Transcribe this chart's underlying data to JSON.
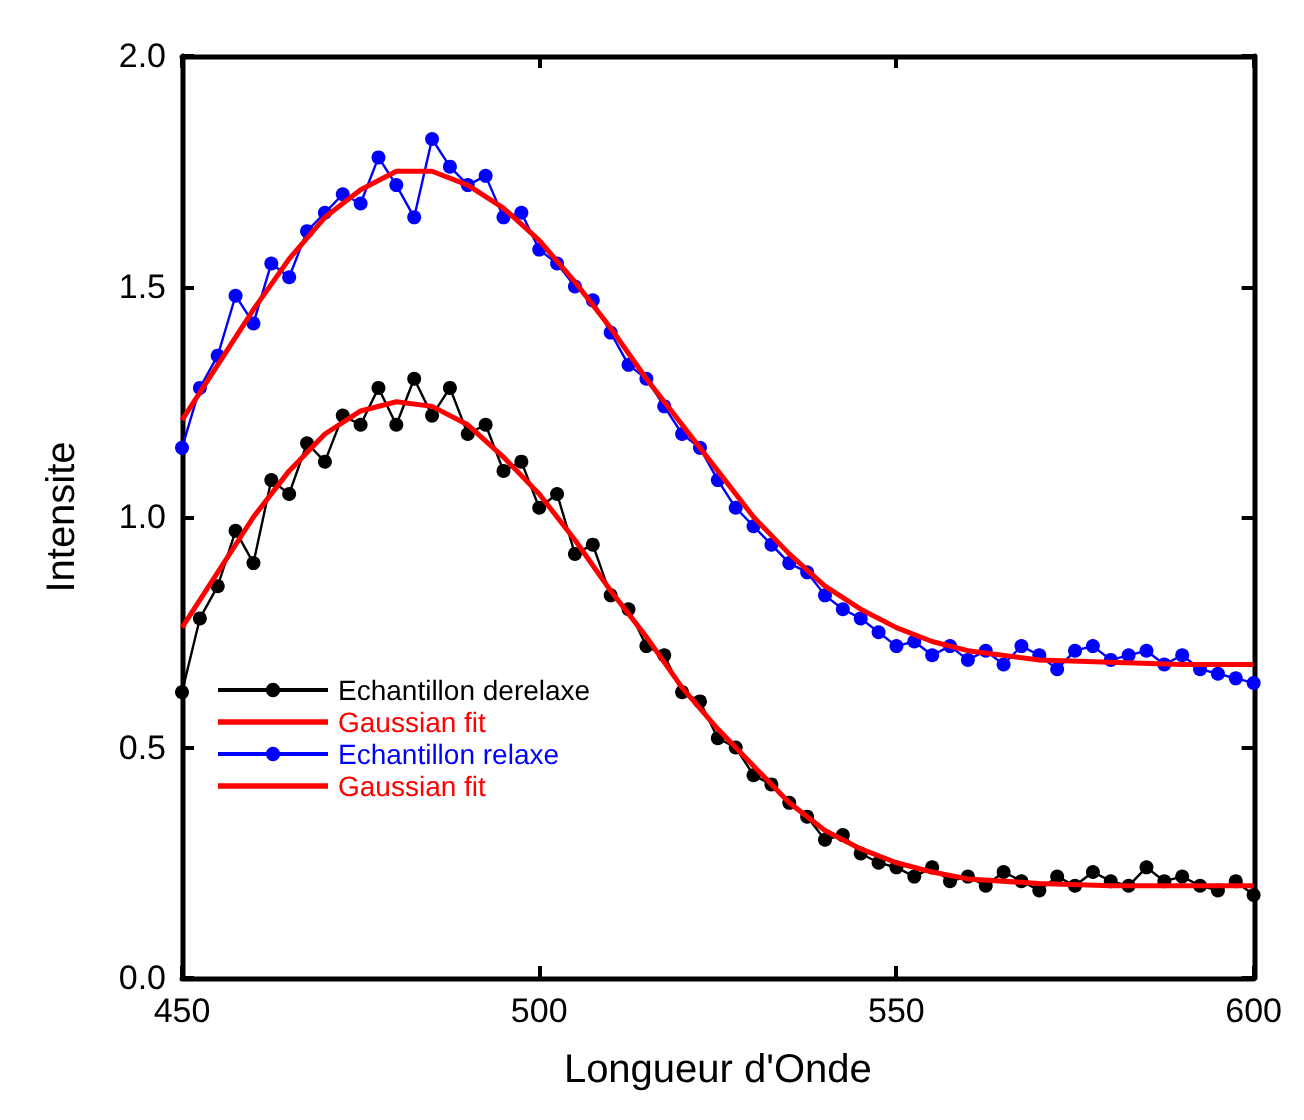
{
  "chart_data": {
    "type": "line",
    "xlabel": "Longueur d'Onde",
    "ylabel": "Intensite",
    "xlim": [
      450,
      600
    ],
    "xticks": [
      450,
      500,
      550,
      600
    ],
    "ylim": [
      0,
      2
    ],
    "yticks": [
      {
        "value": 0,
        "label": "0.0"
      },
      0.5,
      {
        "value": 1,
        "label": "1.0"
      },
      1.5,
      {
        "value": 2,
        "label": "2.0"
      }
    ],
    "grid": false,
    "legend": "bottom left",
    "x": [
      450,
      452.5,
      455,
      457.5,
      460,
      462.5,
      465,
      467.5,
      470,
      472.5,
      475,
      477.5,
      480,
      482.5,
      485,
      487.5,
      490,
      492.5,
      495,
      497.5,
      500,
      502.5,
      505,
      507.5,
      510,
      512.5,
      515,
      517.5,
      520,
      522.5,
      525,
      527.5,
      530,
      532.5,
      535,
      537.5,
      540,
      542.5,
      545,
      547.5,
      550,
      552.5,
      555,
      557.5,
      560,
      562.5,
      565,
      567.5,
      570,
      572.5,
      575,
      577.5,
      580,
      582.5,
      585,
      587.5,
      590,
      592.5,
      595,
      597.5,
      600
    ],
    "series": [
      {
        "name": "Echantillon derelaxe",
        "color": "#000000",
        "marker": "circle",
        "values": [
          0.62,
          0.78,
          0.85,
          0.97,
          0.9,
          1.08,
          1.05,
          1.16,
          1.12,
          1.22,
          1.2,
          1.28,
          1.2,
          1.3,
          1.22,
          1.28,
          1.18,
          1.2,
          1.1,
          1.12,
          1.02,
          1.05,
          0.92,
          0.94,
          0.83,
          0.8,
          0.72,
          0.7,
          0.62,
          0.6,
          0.52,
          0.5,
          0.44,
          0.42,
          0.38,
          0.35,
          0.3,
          0.31,
          0.27,
          0.25,
          0.24,
          0.22,
          0.24,
          0.21,
          0.22,
          0.2,
          0.23,
          0.21,
          0.19,
          0.22,
          0.2,
          0.23,
          0.21,
          0.2,
          0.24,
          0.21,
          0.22,
          0.2,
          0.19,
          0.21,
          0.18
        ]
      },
      {
        "name": "Gaussian fit",
        "color": "#ff0000",
        "marker": "none",
        "x": [
          450,
          455,
          460,
          465,
          470,
          475,
          480,
          485,
          490,
          495,
          500,
          505,
          510,
          515,
          520,
          525,
          530,
          535,
          540,
          545,
          550,
          555,
          560,
          570,
          580,
          590,
          600
        ],
        "values": [
          0.76,
          0.88,
          1.0,
          1.1,
          1.18,
          1.23,
          1.25,
          1.24,
          1.2,
          1.13,
          1.05,
          0.95,
          0.84,
          0.74,
          0.63,
          0.54,
          0.46,
          0.38,
          0.32,
          0.28,
          0.25,
          0.23,
          0.215,
          0.205,
          0.2,
          0.2,
          0.2
        ]
      },
      {
        "name": "Echantillon relaxe",
        "color": "#0000ff",
        "marker": "circle",
        "values": [
          1.15,
          1.28,
          1.35,
          1.48,
          1.42,
          1.55,
          1.52,
          1.62,
          1.66,
          1.7,
          1.68,
          1.78,
          1.72,
          1.65,
          1.82,
          1.76,
          1.72,
          1.74,
          1.65,
          1.66,
          1.58,
          1.55,
          1.5,
          1.47,
          1.4,
          1.33,
          1.3,
          1.24,
          1.18,
          1.15,
          1.08,
          1.02,
          0.98,
          0.94,
          0.9,
          0.88,
          0.83,
          0.8,
          0.78,
          0.75,
          0.72,
          0.73,
          0.7,
          0.72,
          0.69,
          0.71,
          0.68,
          0.72,
          0.7,
          0.67,
          0.71,
          0.72,
          0.69,
          0.7,
          0.71,
          0.68,
          0.7,
          0.67,
          0.66,
          0.65,
          0.64
        ]
      },
      {
        "name": "Gaussian fit",
        "color": "#ff0000",
        "marker": "none",
        "x": [
          450,
          455,
          460,
          465,
          470,
          475,
          480,
          485,
          490,
          495,
          500,
          505,
          510,
          515,
          520,
          525,
          530,
          535,
          540,
          545,
          550,
          555,
          560,
          570,
          580,
          590,
          600
        ],
        "values": [
          1.21,
          1.33,
          1.45,
          1.56,
          1.65,
          1.71,
          1.75,
          1.75,
          1.72,
          1.67,
          1.6,
          1.51,
          1.41,
          1.3,
          1.2,
          1.1,
          1.0,
          0.92,
          0.85,
          0.8,
          0.76,
          0.73,
          0.71,
          0.69,
          0.685,
          0.68,
          0.68
        ]
      }
    ]
  }
}
